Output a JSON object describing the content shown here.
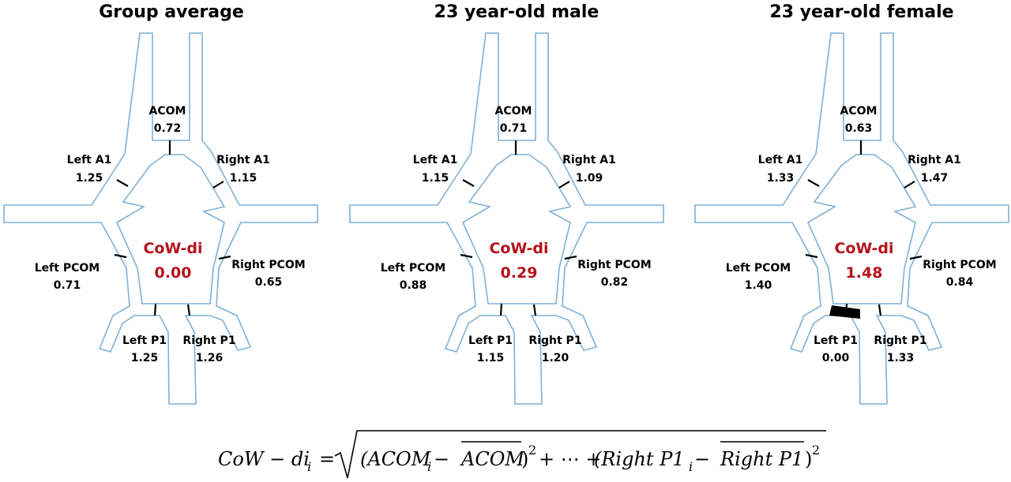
{
  "panels": [
    {
      "title": "Group average",
      "acom": {
        "label": "ACOM",
        "value": "0.72"
      },
      "left_a1": {
        "label": "Left A1",
        "value": "1.25"
      },
      "right_a1": {
        "label": "Right A1",
        "value": "1.15"
      },
      "left_pcom": {
        "label": "Left PCOM",
        "value": "0.71"
      },
      "right_pcom": {
        "label": "Right PCOM",
        "value": "0.65"
      },
      "left_p1": {
        "label": "Left P1",
        "value": "1.25"
      },
      "right_p1": {
        "label": "Right P1",
        "value": "1.26"
      },
      "cow_label": "CoW-di",
      "cow_value": "0.00",
      "missing_segment": ""
    },
    {
      "title": "23 year-old male",
      "acom": {
        "label": "ACOM",
        "value": "0.71"
      },
      "left_a1": {
        "label": "Left A1",
        "value": "1.15"
      },
      "right_a1": {
        "label": "Right A1",
        "value": "1.09"
      },
      "left_pcom": {
        "label": "Left PCOM",
        "value": "0.88"
      },
      "right_pcom": {
        "label": "Right PCOM",
        "value": "0.82"
      },
      "left_p1": {
        "label": "Left P1",
        "value": "1.15"
      },
      "right_p1": {
        "label": "Right P1",
        "value": "1.20"
      },
      "cow_label": "CoW-di",
      "cow_value": "0.29",
      "missing_segment": ""
    },
    {
      "title": "23 year-old female",
      "acom": {
        "label": "ACOM",
        "value": "0.63"
      },
      "left_a1": {
        "label": "Left A1",
        "value": "1.33"
      },
      "right_a1": {
        "label": "Right A1",
        "value": "1.47"
      },
      "left_pcom": {
        "label": "Left PCOM",
        "value": "1.40"
      },
      "right_pcom": {
        "label": "Right PCOM",
        "value": "0.84"
      },
      "left_p1": {
        "label": "Left P1",
        "value": "0.00"
      },
      "right_p1": {
        "label": "Right P1",
        "value": "1.33"
      },
      "cow_label": "CoW-di",
      "cow_value": "1.48",
      "missing_segment": "left_p1"
    }
  ],
  "formula": {
    "lhs": "CoW − di",
    "lhs_sub": "i",
    "eq": "=",
    "term1_open": "(ACOM",
    "term1_sub": "i",
    "term1_minus": " − ",
    "term1_bar": "ACOM",
    "term1_close": ")",
    "sq1": "2",
    "dots": "+ ⋯ +",
    "term2_open": "(Right P1",
    "term2_sub": "i",
    "term2_minus": " − ",
    "term2_bar": "Right P1",
    "term2_close": ")",
    "sq2": "2"
  },
  "colors": {
    "vessel_outline": "#7fb1d6",
    "cow_index": "#b5121b",
    "tick": "#000000"
  }
}
